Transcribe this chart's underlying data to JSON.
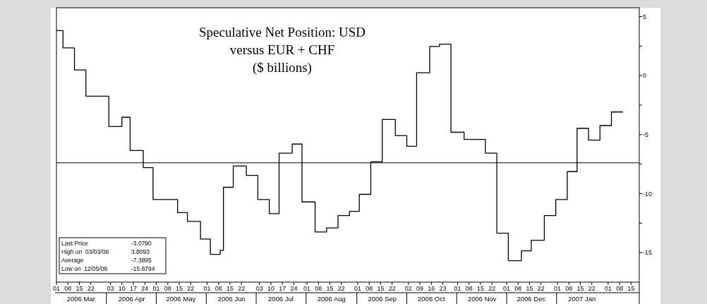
{
  "chart_data": {
    "type": "step",
    "title": "Speculative Net Position: USD\nversus EUR + CHF\n($ billions)",
    "x": [
      "2006-03-01",
      "2006-03-05",
      "2006-03-12",
      "2006-03-19",
      "2006-04-02",
      "2006-04-10",
      "2006-04-15",
      "2006-04-23",
      "2006-04-29",
      "2006-05-14",
      "2006-05-20",
      "2006-05-28",
      "2006-06-03",
      "2006-06-09",
      "2006-06-11",
      "2006-06-17",
      "2006-06-25",
      "2006-07-02",
      "2006-07-09",
      "2006-07-15",
      "2006-07-23",
      "2006-07-29",
      "2006-08-06",
      "2006-08-13",
      "2006-08-20",
      "2006-08-27",
      "2006-09-02",
      "2006-09-09",
      "2006-09-16",
      "2006-09-24",
      "2006-10-01",
      "2006-10-07",
      "2006-10-15",
      "2006-10-21",
      "2006-10-28",
      "2006-11-05",
      "2006-11-18",
      "2006-11-25",
      "2006-12-02",
      "2006-12-10",
      "2006-12-16",
      "2006-12-24",
      "2006-12-31",
      "2007-01-07",
      "2007-01-13",
      "2007-01-20",
      "2007-01-27",
      "2007-02-03",
      "2007-02-10"
    ],
    "series": [
      {
        "color": "#000000",
        "values": [
          3.81,
          2.35,
          0.48,
          -1.74,
          -4.31,
          -3.53,
          -6.35,
          -7.8,
          -10.5,
          -11.6,
          -12.35,
          -13.85,
          -15.15,
          -14.8,
          -9.46,
          -7.66,
          -8.45,
          -10.5,
          -11.7,
          -6.57,
          -5.8,
          -10.7,
          -13.25,
          -12.9,
          -11.86,
          -11.5,
          -10.06,
          -7.3,
          -3.71,
          -5.09,
          -5.99,
          0.24,
          2.47,
          2.67,
          -4.8,
          -5.4,
          -6.57,
          -13.35,
          -15.68,
          -14.85,
          -13.95,
          -11.86,
          -10.5,
          -8.13,
          -4.47,
          -5.47,
          -4.23,
          -3.08,
          -3.08
        ]
      }
    ],
    "xlim": [
      "2006-03-01",
      "2007-02-20"
    ],
    "xticks": [
      {
        "value": "2006-03-01",
        "label": "01"
      },
      {
        "value": "2006-03-08",
        "label": "08"
      },
      {
        "value": "2006-03-15",
        "label": "15"
      },
      {
        "value": "2006-03-22",
        "label": "22"
      },
      {
        "value": "2006-04-03",
        "label": "03"
      },
      {
        "value": "2006-04-10",
        "label": "10"
      },
      {
        "value": "2006-04-17",
        "label": "17"
      },
      {
        "value": "2006-04-24",
        "label": "24"
      },
      {
        "value": "2006-05-01",
        "label": "01"
      },
      {
        "value": "2006-05-08",
        "label": "08"
      },
      {
        "value": "2006-05-15",
        "label": "15"
      },
      {
        "value": "2006-05-22",
        "label": "22"
      },
      {
        "value": "2006-06-01",
        "label": "01"
      },
      {
        "value": "2006-06-08",
        "label": "08"
      },
      {
        "value": "2006-06-15",
        "label": "15"
      },
      {
        "value": "2006-06-22",
        "label": "22"
      },
      {
        "value": "2006-07-03",
        "label": "03"
      },
      {
        "value": "2006-07-10",
        "label": "10"
      },
      {
        "value": "2006-07-17",
        "label": "17"
      },
      {
        "value": "2006-07-24",
        "label": "24"
      },
      {
        "value": "2006-08-01",
        "label": "01"
      },
      {
        "value": "2006-08-08",
        "label": "08"
      },
      {
        "value": "2006-08-15",
        "label": "15"
      },
      {
        "value": "2006-08-22",
        "label": "22"
      },
      {
        "value": "2006-09-01",
        "label": "01"
      },
      {
        "value": "2006-09-08",
        "label": "08"
      },
      {
        "value": "2006-09-15",
        "label": "15"
      },
      {
        "value": "2006-09-22",
        "label": "22"
      },
      {
        "value": "2006-10-02",
        "label": "02"
      },
      {
        "value": "2006-10-09",
        "label": "09"
      },
      {
        "value": "2006-10-16",
        "label": "16"
      },
      {
        "value": "2006-10-23",
        "label": "23"
      },
      {
        "value": "2006-11-01",
        "label": "01"
      },
      {
        "value": "2006-11-08",
        "label": "08"
      },
      {
        "value": "2006-11-15",
        "label": "15"
      },
      {
        "value": "2006-11-22",
        "label": "22"
      },
      {
        "value": "2006-12-01",
        "label": "01"
      },
      {
        "value": "2006-12-08",
        "label": "08"
      },
      {
        "value": "2006-12-15",
        "label": "15"
      },
      {
        "value": "2006-12-22",
        "label": "22"
      },
      {
        "value": "2007-01-01",
        "label": "01"
      },
      {
        "value": "2007-01-08",
        "label": "08"
      },
      {
        "value": "2007-01-15",
        "label": "15"
      },
      {
        "value": "2007-01-22",
        "label": "22"
      },
      {
        "value": "2007-02-01",
        "label": "01"
      },
      {
        "value": "2007-02-08",
        "label": "08"
      },
      {
        "value": "2007-02-15",
        "label": "15"
      }
    ],
    "x2lim": [
      "2006-03-01",
      "2007-02-20"
    ],
    "x2ticks": [
      {
        "value": "2006-03-16",
        "label": "2006 Mar"
      },
      {
        "value": "2006-04-16",
        "label": "2006 Apr"
      },
      {
        "value": "2006-05-16",
        "label": "2006 May"
      },
      {
        "value": "2006-06-16",
        "label": "2006 Jun"
      },
      {
        "value": "2006-07-16",
        "label": "2006 Jul"
      },
      {
        "value": "2006-08-16",
        "label": "2006 Aug"
      },
      {
        "value": "2006-09-16",
        "label": "2006 Sep"
      },
      {
        "value": "2006-10-16",
        "label": "2006 Oct"
      },
      {
        "value": "2006-11-16",
        "label": "2006 Nov"
      },
      {
        "value": "2006-12-16",
        "label": "2006 Dec"
      },
      {
        "value": "2007-01-16",
        "label": "2007 Jan"
      }
    ],
    "ylim": [
      -17.5,
      5.75
    ],
    "yticks": [
      5,
      {
        "value": 2.5,
        "label": null
      },
      0,
      {
        "value": -2.5,
        "label": null
      },
      -5,
      {
        "value": -7.5,
        "label": null
      },
      -10,
      {
        "value": -12.5,
        "label": null
      },
      -15
    ],
    "ref_lines": [
      {
        "axis": "y",
        "value": -7.3895,
        "color": "#000000"
      }
    ],
    "annotations": [
      "Last Price",
      "-3.0790",
      "High on  03/03/06",
      "3.8093",
      "Average",
      "-7.3895",
      "Low on  12/05/06",
      "-15.6794"
    ],
    "grid": false
  }
}
